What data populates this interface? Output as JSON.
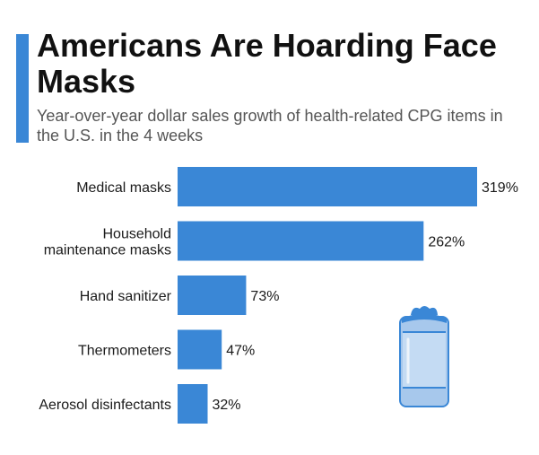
{
  "header": {
    "title": "Americans Are Hoarding Face Masks",
    "subtitle": "Year-over-year dollar sales growth of health-related CPG items in the U.S. in the 4 weeks"
  },
  "colors": {
    "accent": "#3a87d6",
    "bar": "#3a87d6",
    "icon_fill": "#9fc3ea",
    "icon_stroke": "#3a87d6"
  },
  "icon": "disinfecting-wipes-canister-icon",
  "chart_data": {
    "type": "bar",
    "orientation": "horizontal",
    "categories": [
      [
        "Medical masks"
      ],
      [
        "Household",
        "maintenance masks"
      ],
      [
        "Hand sanitizer"
      ],
      [
        "Thermometers"
      ],
      [
        "Aerosol disinfectants"
      ]
    ],
    "values": [
      319,
      262,
      73,
      47,
      32
    ],
    "value_labels": [
      "319%",
      "262%",
      "73%",
      "47%",
      "32%"
    ],
    "unit": "%",
    "xlim": [
      0,
      319
    ],
    "grid": false,
    "legend": "none"
  }
}
